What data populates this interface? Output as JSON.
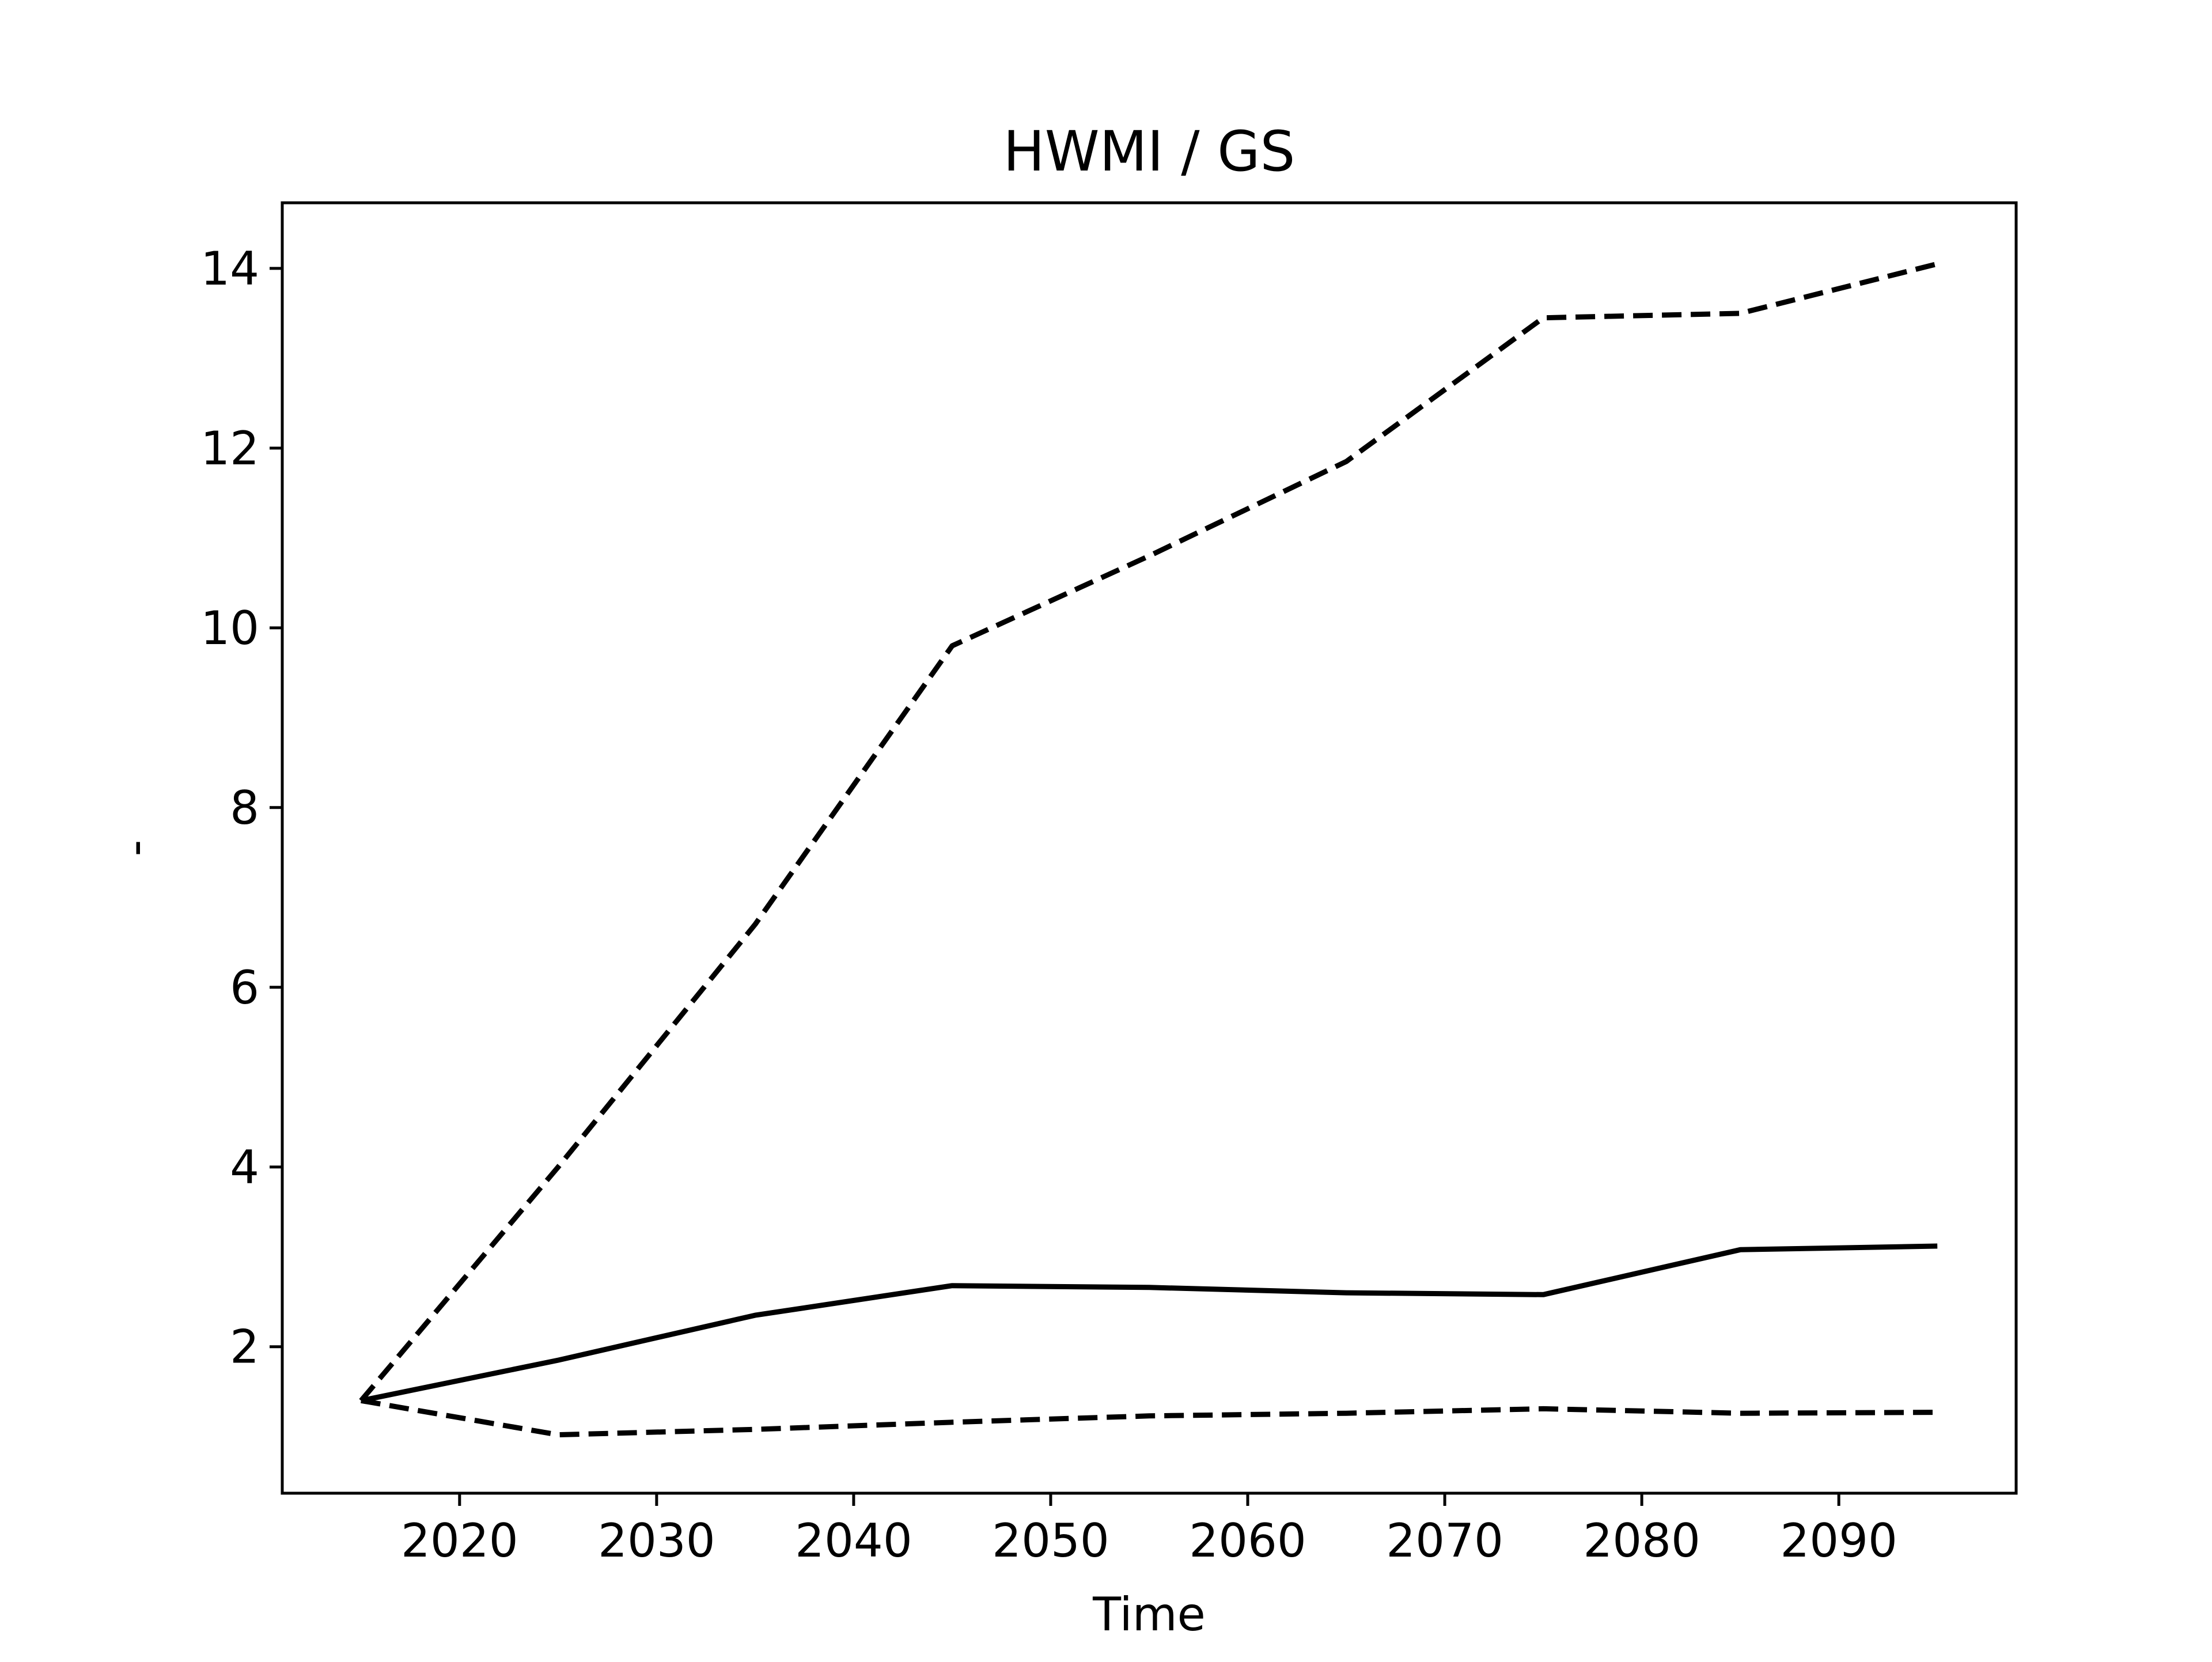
{
  "chart_data": {
    "type": "line",
    "title": "HWMI / GS",
    "xlabel": "Time",
    "ylabel": "-",
    "x": [
      2015,
      2025,
      2035,
      2045,
      2055,
      2065,
      2075,
      2085,
      2095
    ],
    "series": [
      {
        "style": "solid",
        "color": "#000000",
        "values": [
          1.4,
          1.85,
          2.35,
          2.68,
          2.66,
          2.6,
          2.58,
          3.08,
          3.12
        ]
      },
      {
        "style": "dashed",
        "color": "#000000",
        "values": [
          1.4,
          4.0,
          6.7,
          9.8,
          10.8,
          11.85,
          13.45,
          13.5,
          14.05
        ]
      },
      {
        "style": "dashed",
        "color": "#000000",
        "values": [
          1.4,
          1.02,
          1.08,
          1.16,
          1.23,
          1.26,
          1.31,
          1.26,
          1.27
        ]
      }
    ],
    "xlim": [
      2011.0,
      2099.0
    ],
    "ylim": [
      0.37,
      14.73
    ],
    "xticks": [
      2020,
      2030,
      2040,
      2050,
      2060,
      2070,
      2080,
      2090
    ],
    "yticks": [
      2,
      4,
      6,
      8,
      10,
      12,
      14
    ],
    "grid": false,
    "legend": "none"
  }
}
